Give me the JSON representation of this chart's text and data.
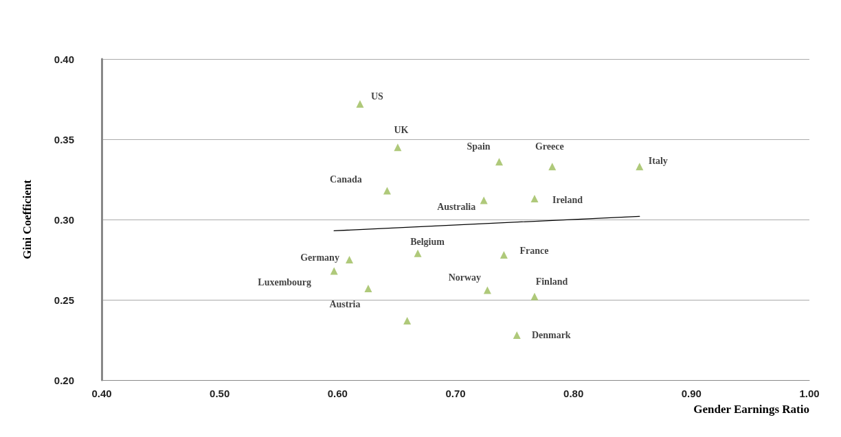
{
  "chart_data": {
    "type": "scatter",
    "xlabel": "Gender Earnings Ratio",
    "ylabel": "Gini Coefficient",
    "xlim": [
      0.4,
      1.0
    ],
    "ylim": [
      0.2,
      0.4
    ],
    "xticks": [
      {
        "value": 0.4,
        "label": "0.40"
      },
      {
        "value": 0.5,
        "label": "0.50"
      },
      {
        "value": 0.6,
        "label": "0.60"
      },
      {
        "value": 0.7,
        "label": "0.70"
      },
      {
        "value": 0.8,
        "label": "0.80"
      },
      {
        "value": 0.9,
        "label": "0.90"
      },
      {
        "value": 1.0,
        "label": "1.00"
      }
    ],
    "yticks": [
      {
        "value": 0.2,
        "label": "0.20"
      },
      {
        "value": 0.25,
        "label": "0.25"
      },
      {
        "value": 0.3,
        "label": "0.30"
      },
      {
        "value": 0.35,
        "label": "0.35"
      },
      {
        "value": 0.4,
        "label": "0.40"
      }
    ],
    "grid": "y",
    "series": [
      {
        "type": "scatter",
        "color": "#9bbb59",
        "marker": "triangle",
        "x": [
          0.619,
          0.651,
          0.737,
          0.782,
          0.856,
          0.642,
          0.724,
          0.767,
          0.61,
          0.597,
          0.626,
          0.668,
          0.741,
          0.727,
          0.767,
          0.659,
          0.752
        ],
        "values": [
          0.372,
          0.345,
          0.336,
          0.333,
          0.333,
          0.318,
          0.312,
          0.313,
          0.275,
          0.268,
          0.257,
          0.279,
          0.278,
          0.256,
          0.252,
          0.237,
          0.228
        ]
      },
      {
        "type": "line",
        "color": "#000000",
        "marker": "none",
        "x": [
          0.597,
          0.856
        ],
        "values": [
          0.293,
          0.302
        ]
      }
    ],
    "annotations": [
      {
        "text": "US",
        "x": 0.619,
        "y": 0.372
      },
      {
        "text": "UK",
        "x": 0.651,
        "y": 0.345
      },
      {
        "text": "Spain",
        "x": 0.737,
        "y": 0.336
      },
      {
        "text": "Greece",
        "x": 0.782,
        "y": 0.333
      },
      {
        "text": "Italy",
        "x": 0.856,
        "y": 0.333
      },
      {
        "text": "Canada",
        "x": 0.642,
        "y": 0.318
      },
      {
        "text": "Australia",
        "x": 0.724,
        "y": 0.312
      },
      {
        "text": "Ireland",
        "x": 0.767,
        "y": 0.313
      },
      {
        "text": "Germany",
        "x": 0.61,
        "y": 0.275
      },
      {
        "text": "Luxembourg",
        "x": 0.597,
        "y": 0.268
      },
      {
        "text": "Austria",
        "x": 0.626,
        "y": 0.257
      },
      {
        "text": "Belgium",
        "x": 0.668,
        "y": 0.279
      },
      {
        "text": "France",
        "x": 0.741,
        "y": 0.278
      },
      {
        "text": "Norway",
        "x": 0.727,
        "y": 0.256
      },
      {
        "text": "Finland",
        "x": 0.767,
        "y": 0.252
      },
      {
        "text": "Denmark",
        "x": 0.752,
        "y": 0.228
      }
    ]
  }
}
